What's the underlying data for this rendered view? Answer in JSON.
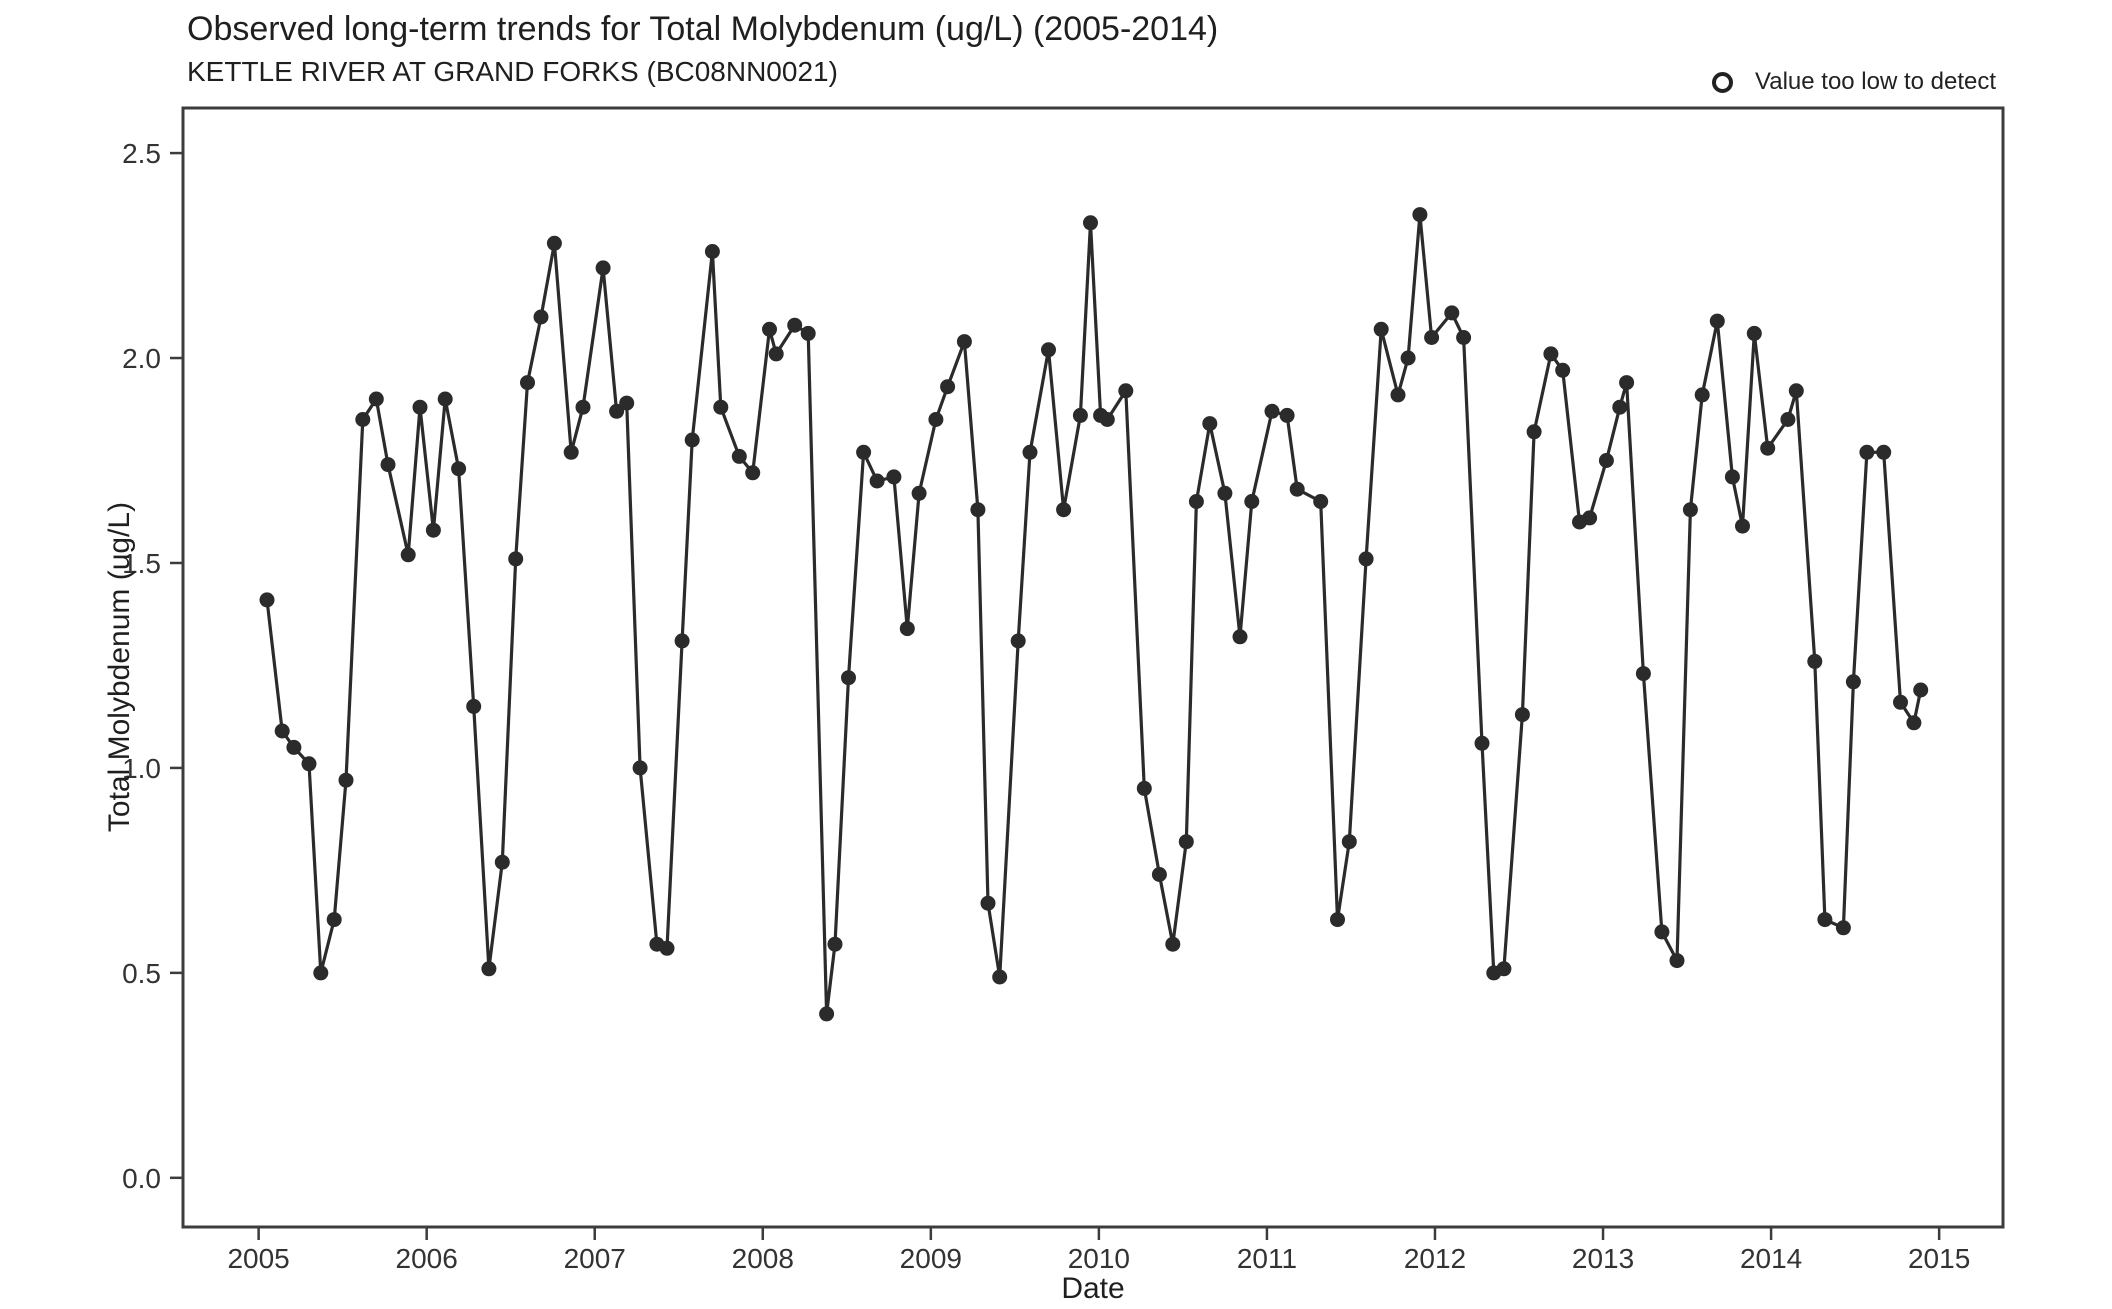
{
  "legend": {
    "label": "Value too low to detect",
    "symbol": "open-circle"
  },
  "colors": {
    "series": "#2b2b2b",
    "axis": "#3c3c3c",
    "tick_text": "#333333",
    "title_text": "#1f1f1f",
    "background": "#ffffff"
  },
  "chart_data": {
    "type": "line",
    "title": "Observed long-term trends for Total Molybdenum (ug/L) (2005-2014)",
    "subtitle": "KETTLE RIVER AT GRAND FORKS (BC08NN0021)",
    "series_name": "Total Molybdenum",
    "xlabel": "Date",
    "ylabel": "Total Molybdenum (ug/L)",
    "legend": {
      "label": "Value too low to detect",
      "symbol": "open-circle"
    },
    "legend_position": "top-right",
    "grid": false,
    "point_style": "filled-circle",
    "xlim": [
      2004.55,
      2015.38
    ],
    "ylim": [
      -0.12,
      2.61
    ],
    "x_ticks": [
      2005,
      2006,
      2007,
      2008,
      2009,
      2010,
      2011,
      2012,
      2013,
      2014,
      2015
    ],
    "x_tick_labels": [
      "2005",
      "2006",
      "2007",
      "2008",
      "2009",
      "2010",
      "2011",
      "2012",
      "2013",
      "2014",
      "2015"
    ],
    "y_ticks": [
      0,
      0.5,
      1,
      1.5,
      2,
      2.5
    ],
    "y_tick_labels": [
      "0.0",
      "0.5",
      "1.0",
      "1.5",
      "2.0",
      "2.5"
    ],
    "x": [
      2005.05,
      2005.14,
      2005.21,
      2005.3,
      2005.37,
      2005.45,
      2005.52,
      2005.62,
      2005.7,
      2005.77,
      2005.89,
      2005.96,
      2006.04,
      2006.11,
      2006.19,
      2006.28,
      2006.37,
      2006.45,
      2006.53,
      2006.6,
      2006.68,
      2006.76,
      2006.86,
      2006.93,
      2007.05,
      2007.13,
      2007.19,
      2007.27,
      2007.37,
      2007.43,
      2007.52,
      2007.58,
      2007.7,
      2007.75,
      2007.86,
      2007.94,
      2008.04,
      2008.08,
      2008.19,
      2008.27,
      2008.38,
      2008.43,
      2008.51,
      2008.6,
      2008.68,
      2008.78,
      2008.86,
      2008.93,
      2009.03,
      2009.1,
      2009.2,
      2009.28,
      2009.34,
      2009.41,
      2009.52,
      2009.59,
      2009.7,
      2009.79,
      2009.89,
      2009.95,
      2010.01,
      2010.05,
      2010.16,
      2010.27,
      2010.36,
      2010.44,
      2010.52,
      2010.58,
      2010.66,
      2010.75,
      2010.84,
      2010.91,
      2011.03,
      2011.12,
      2011.18,
      2011.32,
      2011.42,
      2011.49,
      2011.59,
      2011.68,
      2011.78,
      2011.84,
      2011.91,
      2011.98,
      2012.1,
      2012.17,
      2012.28,
      2012.35,
      2012.41,
      2012.52,
      2012.59,
      2012.69,
      2012.76,
      2012.86,
      2012.92,
      2013.02,
      2013.1,
      2013.14,
      2013.24,
      2013.35,
      2013.44,
      2013.52,
      2013.59,
      2013.68,
      2013.77,
      2013.83,
      2013.9,
      2013.98,
      2014.1,
      2014.15,
      2014.26,
      2014.32,
      2014.43,
      2014.49,
      2014.57,
      2014.67,
      2014.77,
      2014.85,
      2014.89
    ],
    "y": [
      1.41,
      1.09,
      1.05,
      1.01,
      0.5,
      0.63,
      0.97,
      1.85,
      1.9,
      1.74,
      1.52,
      1.88,
      1.58,
      1.9,
      1.73,
      1.15,
      0.51,
      0.77,
      1.51,
      1.94,
      2.1,
      2.28,
      1.77,
      1.88,
      2.22,
      1.87,
      1.89,
      1.0,
      0.57,
      0.56,
      1.31,
      1.8,
      2.26,
      1.88,
      1.76,
      1.72,
      2.07,
      2.01,
      2.08,
      2.06,
      0.4,
      0.57,
      1.22,
      1.77,
      1.7,
      1.71,
      1.34,
      1.67,
      1.85,
      1.93,
      2.04,
      1.63,
      0.67,
      0.49,
      1.31,
      1.77,
      2.02,
      1.63,
      1.86,
      2.33,
      1.86,
      1.85,
      1.92,
      0.95,
      0.74,
      0.57,
      0.82,
      1.65,
      1.84,
      1.67,
      1.32,
      1.65,
      1.87,
      1.86,
      1.68,
      1.65,
      0.63,
      0.82,
      1.51,
      2.07,
      1.91,
      2.0,
      2.35,
      2.05,
      2.11,
      2.05,
      1.06,
      0.5,
      0.51,
      1.13,
      1.82,
      2.01,
      1.97,
      1.6,
      1.61,
      1.75,
      1.88,
      1.94,
      1.23,
      0.6,
      0.53,
      1.63,
      1.91,
      2.09,
      1.71,
      1.59,
      2.06,
      1.78,
      1.85,
      1.92,
      1.26,
      0.63,
      0.61,
      1.21,
      1.77,
      1.77,
      1.16,
      1.11,
      1.19
    ]
  }
}
